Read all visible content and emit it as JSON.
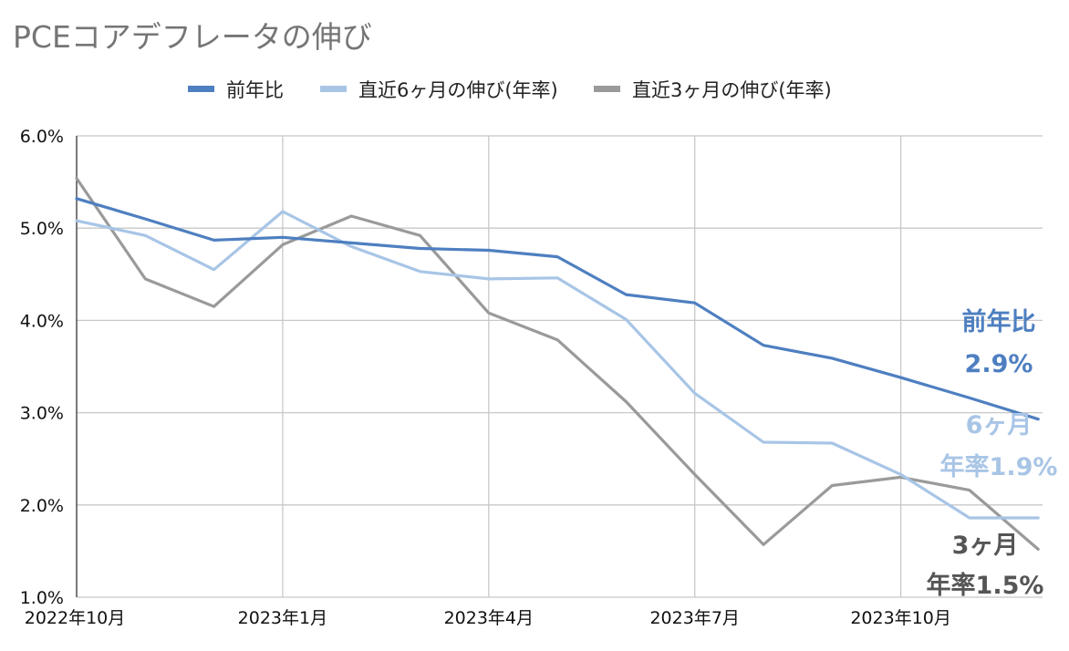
{
  "chart_data": {
    "type": "line",
    "title": "PCEコアデフレータの伸び",
    "xlabel": "",
    "ylabel": "",
    "legend_position": "top",
    "grid": true,
    "ylim": [
      1.0,
      6.0
    ],
    "y_ticks": [
      "6.0%",
      "5.0%",
      "4.0%",
      "3.0%",
      "2.0%",
      "1.0%"
    ],
    "y_tick_values": [
      6.0,
      5.0,
      4.0,
      3.0,
      2.0,
      1.0
    ],
    "x": [
      "2022-10",
      "2022-11",
      "2022-12",
      "2023-01",
      "2023-02",
      "2023-03",
      "2023-04",
      "2023-05",
      "2023-06",
      "2023-07",
      "2023-08",
      "2023-09",
      "2023-10",
      "2023-11",
      "2023-12"
    ],
    "x_ticks": [
      "2022年10月",
      "2023年1月",
      "2023年4月",
      "2023年7月",
      "2023年10月"
    ],
    "x_tick_index": [
      0,
      3,
      6,
      9,
      12
    ],
    "series": [
      {
        "name": "前年比",
        "color": "#4e7fc0",
        "values": [
          5.32,
          5.1,
          4.87,
          4.9,
          4.84,
          4.78,
          4.76,
          4.69,
          4.28,
          4.19,
          3.73,
          3.59,
          3.38,
          3.16,
          2.93
        ]
      },
      {
        "name": "直近6ヶ月の伸び(年率)",
        "color": "#a8c5e6",
        "values": [
          5.08,
          4.92,
          4.55,
          5.18,
          4.8,
          4.53,
          4.45,
          4.46,
          4.01,
          3.21,
          2.68,
          2.67,
          2.33,
          1.86,
          1.86
        ]
      },
      {
        "name": "直近3ヶ月の伸び(年率)",
        "color": "#9a9a9a",
        "values": [
          5.54,
          4.45,
          4.15,
          4.82,
          5.13,
          4.92,
          4.08,
          3.79,
          3.12,
          2.33,
          1.57,
          2.21,
          2.3,
          2.16,
          1.52
        ]
      }
    ],
    "annotations": [
      {
        "lines": [
          "前年比",
          "2.9%"
        ],
        "color": "#4e7fc0"
      },
      {
        "lines": [
          "6ヶ月",
          "年率1.9%"
        ],
        "color": "#a8c5e6"
      },
      {
        "lines": [
          "3ヶ月",
          "年率1.5%"
        ],
        "color": "#555555"
      }
    ]
  }
}
